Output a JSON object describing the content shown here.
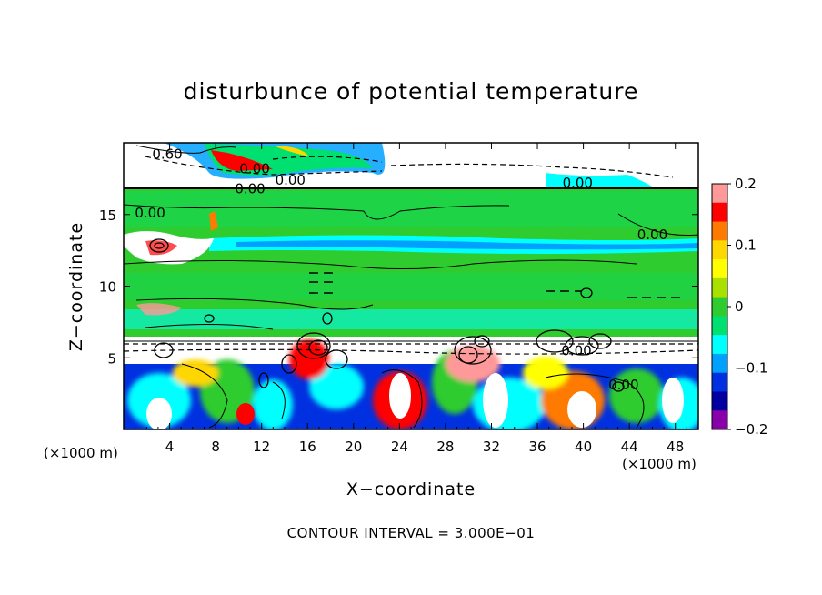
{
  "chart_data": {
    "type": "heatmap",
    "title": "disturbunce of potential temperature",
    "xlabel": "X−coordinate",
    "ylabel": "Z−coordinate",
    "x_unit": "(×1000 m)",
    "x_range": [
      0,
      50
    ],
    "y_range": [
      0,
      20
    ],
    "x_ticks": [
      4,
      8,
      12,
      16,
      20,
      24,
      28,
      32,
      36,
      40,
      44,
      48
    ],
    "y_ticks": [
      5,
      10,
      15
    ],
    "colorbar": {
      "range": [
        -0.2,
        0.2
      ],
      "tick_values": [
        0.2,
        0.1,
        0,
        -0.1,
        -0.2
      ],
      "tick_labels": [
        "0.2",
        "0.1",
        "0",
        "−0.1",
        "−0.2"
      ],
      "colors": [
        "#ff9999",
        "#ff0000",
        "#ff7a00",
        "#ffd700",
        "#ffff00",
        "#a8e000",
        "#2fcc2f",
        "#00e070",
        "#00ffff",
        "#00a0ff",
        "#0030e0",
        "#0000a0",
        "#8800aa"
      ]
    },
    "contour_labels": [
      {
        "text": "0.60",
        "x": 3.8,
        "y": 19.2
      },
      {
        "text": "0.00",
        "x": 11.4,
        "y": 18.2
      },
      {
        "text": "0.00",
        "x": 11.0,
        "y": 16.8
      },
      {
        "text": "0.00",
        "x": 14.5,
        "y": 17.4
      },
      {
        "text": "0.00",
        "x": 39.5,
        "y": 17.2
      },
      {
        "text": "0.00",
        "x": 2.3,
        "y": 15.1
      },
      {
        "text": "0.00",
        "x": 46.0,
        "y": 13.6
      },
      {
        "text": "0.00",
        "x": 43.5,
        "y": 3.1
      },
      {
        "text": "0.00",
        "x": 39.4,
        "y": 5.5
      }
    ],
    "contour_interval_text": "CONTOUR INTERVAL = 3.000E−01"
  }
}
